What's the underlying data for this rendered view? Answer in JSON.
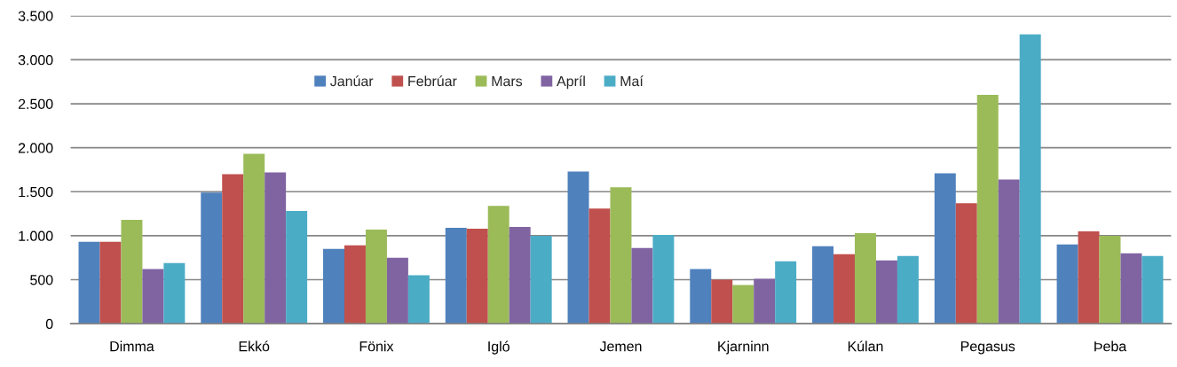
{
  "chart_data": {
    "type": "bar",
    "categories": [
      "Dimma",
      "Ekkó",
      "Fönix",
      "Igló",
      "Jemen",
      "Kjarninn",
      "Kúlan",
      "Pegasus",
      "Þeba"
    ],
    "series": [
      {
        "name": "Janúar",
        "color": "#4f81bd",
        "values": [
          930,
          1490,
          850,
          1090,
          1730,
          620,
          880,
          1710,
          900
        ]
      },
      {
        "name": "Febrúar",
        "color": "#c0504d",
        "values": [
          930,
          1700,
          890,
          1080,
          1310,
          500,
          790,
          1370,
          1050
        ]
      },
      {
        "name": "Mars",
        "color": "#9bbb59",
        "values": [
          1180,
          1930,
          1070,
          1340,
          1550,
          440,
          1030,
          2600,
          1000
        ]
      },
      {
        "name": "Apríl",
        "color": "#8064a2",
        "values": [
          620,
          1720,
          750,
          1100,
          860,
          510,
          720,
          1640,
          800
        ]
      },
      {
        "name": "Maí",
        "color": "#4bacc6",
        "values": [
          690,
          1280,
          550,
          1000,
          1010,
          710,
          770,
          3290,
          770
        ]
      }
    ],
    "ylim": [
      0,
      3500
    ],
    "yticks": [
      0,
      500,
      {
        "value": 1000,
        "label": "1.000"
      },
      {
        "value": 1500,
        "label": "1.500"
      },
      {
        "value": 2000,
        "label": "2.000"
      },
      {
        "value": 2500,
        "label": "2.500"
      },
      {
        "value": 3000,
        "label": "3.000"
      },
      {
        "value": 3500,
        "label": "3.500"
      }
    ],
    "grid": "y",
    "legend": "top"
  }
}
